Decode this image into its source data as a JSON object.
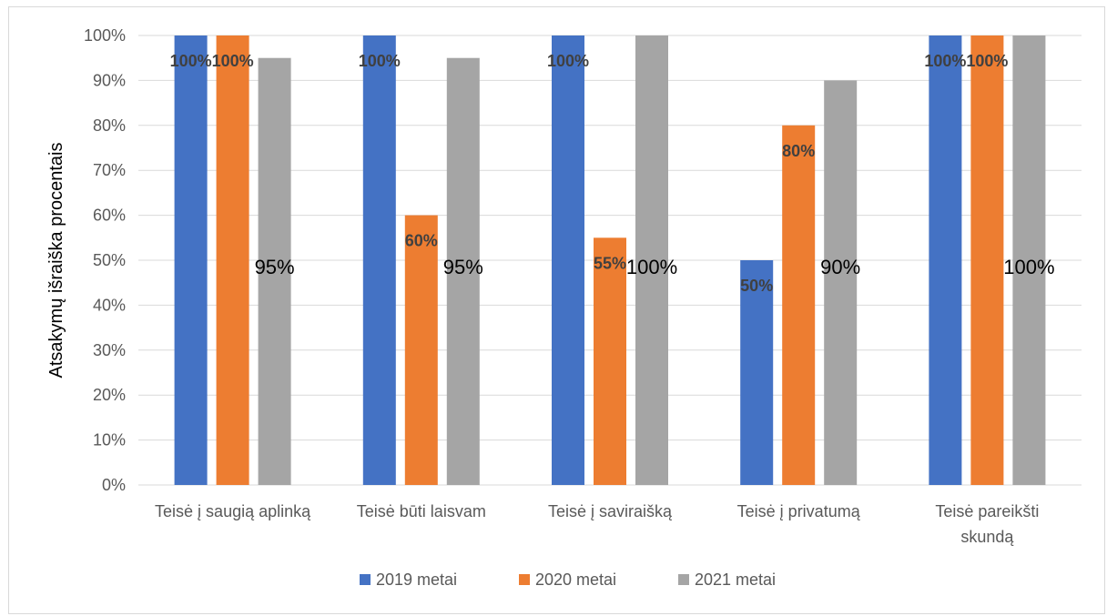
{
  "chart_data": {
    "type": "bar",
    "ylabel": "Atsakymų išraiška procentais",
    "xlabel": "",
    "ylim": [
      0,
      100
    ],
    "y_ticks": [
      "0%",
      "10%",
      "20%",
      "30%",
      "40%",
      "50%",
      "60%",
      "70%",
      "80%",
      "90%",
      "100%"
    ],
    "grid": true,
    "legend_position": "bottom",
    "categories": [
      [
        "Teisė į saugią aplinką"
      ],
      [
        "Teisė būti laisvam"
      ],
      [
        "Teisė į saviraišką"
      ],
      [
        "Teisė į privatumą"
      ],
      [
        "Teisė pareikšti",
        "skundą"
      ]
    ],
    "series": [
      {
        "name": "2019 metai",
        "color": "#4472c4",
        "values": [
          100,
          100,
          100,
          50,
          100
        ],
        "labels": [
          "100%",
          "100%",
          "100%",
          "50%",
          "100%"
        ]
      },
      {
        "name": "2020 metai",
        "color": "#ed7d31",
        "values": [
          100,
          60,
          55,
          80,
          100
        ],
        "labels": [
          "100%",
          "60%",
          "55%",
          "80%",
          "100%"
        ]
      },
      {
        "name": "2021 metai",
        "color": "#a5a5a5",
        "values": [
          95,
          95,
          100,
          90,
          100
        ],
        "labels": [
          "95%",
          "95%",
          "100%",
          "90%",
          "100%"
        ]
      }
    ]
  }
}
